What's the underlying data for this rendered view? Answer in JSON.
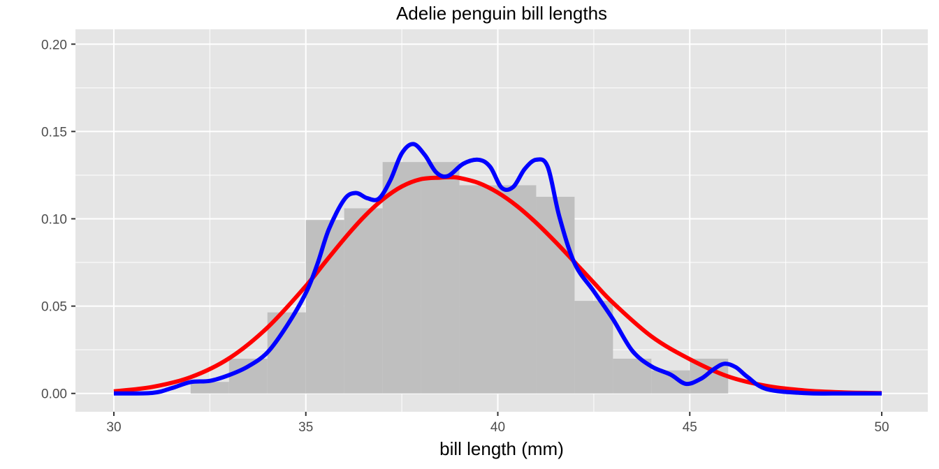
{
  "chart_data": {
    "type": "histogram",
    "title": "Adelie penguin bill lengths",
    "xlabel": "bill length (mm)",
    "ylabel": "",
    "xlim": [
      29,
      51.2
    ],
    "ylim": [
      -0.0105,
      0.2085
    ],
    "x_ticks": [
      30,
      35,
      40,
      45,
      50
    ],
    "x_tick_labels": [
      "30",
      "35",
      "40",
      "45",
      "50"
    ],
    "y_ticks": [
      0.0,
      0.05,
      0.1,
      0.15,
      0.2
    ],
    "y_tick_labels": [
      "0.00",
      "0.05",
      "0.10",
      "0.15",
      "0.20"
    ],
    "grid": true,
    "panel_background": "#e5e5e5",
    "bins": {
      "binwidth": 1,
      "starts": [
        32,
        33,
        34,
        35,
        36,
        37,
        38,
        39,
        40,
        41,
        42,
        43,
        44,
        45
      ],
      "density": [
        0.0066,
        0.0199,
        0.0464,
        0.0993,
        0.106,
        0.1325,
        0.1325,
        0.1192,
        0.1192,
        0.1126,
        0.053,
        0.0199,
        0.0132,
        0.0199
      ],
      "color": "#bfbfbf"
    },
    "series": [
      {
        "name": "",
        "kind": "normal density",
        "color": "#ff0000",
        "x": [
          30,
          31,
          32,
          33,
          34,
          35,
          35.5,
          36,
          36.5,
          37,
          37.5,
          38,
          38.5,
          38.8,
          39,
          39.5,
          40,
          40.5,
          41,
          41.5,
          42,
          42.5,
          43,
          44,
          45,
          46,
          47,
          48,
          49,
          50
        ],
        "y": [
          0.0012,
          0.0037,
          0.0093,
          0.0201,
          0.0377,
          0.0615,
          0.0751,
          0.0885,
          0.1008,
          0.111,
          0.1185,
          0.1227,
          0.1236,
          0.1238,
          0.1234,
          0.1205,
          0.115,
          0.1073,
          0.0977,
          0.0868,
          0.0752,
          0.0634,
          0.0519,
          0.0327,
          0.0196,
          0.0097,
          0.0043,
          0.0017,
          0.0006,
          0.0002
        ]
      },
      {
        "name": "",
        "kind": "kernel density",
        "color": "#0000ff",
        "x": [
          30,
          31,
          31.5,
          32,
          32.5,
          33,
          33.5,
          34,
          34.5,
          35,
          35.3,
          35.6,
          36,
          36.3,
          36.6,
          36.9,
          37.2,
          37.5,
          37.8,
          38.1,
          38.4,
          38.7,
          39.1,
          39.5,
          39.8,
          40.1,
          40.4,
          40.7,
          41,
          41.3,
          41.6,
          42,
          42.5,
          43,
          43.5,
          44,
          44.5,
          44.9,
          45.3,
          45.6,
          45.9,
          46.2,
          46.5,
          47,
          48,
          49,
          50
        ],
        "y": [
          0.0,
          0.0003,
          0.003,
          0.0065,
          0.0072,
          0.0105,
          0.0155,
          0.0235,
          0.0385,
          0.0575,
          0.074,
          0.094,
          0.111,
          0.1148,
          0.1118,
          0.1115,
          0.122,
          0.1375,
          0.1428,
          0.1365,
          0.1265,
          0.1245,
          0.1315,
          0.1338,
          0.1298,
          0.1178,
          0.1182,
          0.1285,
          0.1338,
          0.1298,
          0.1015,
          0.0745,
          0.0585,
          0.0425,
          0.0245,
          0.0155,
          0.0108,
          0.0055,
          0.0085,
          0.0135,
          0.017,
          0.015,
          0.0095,
          0.0025,
          0.0002,
          0.0,
          0.0
        ]
      }
    ]
  }
}
